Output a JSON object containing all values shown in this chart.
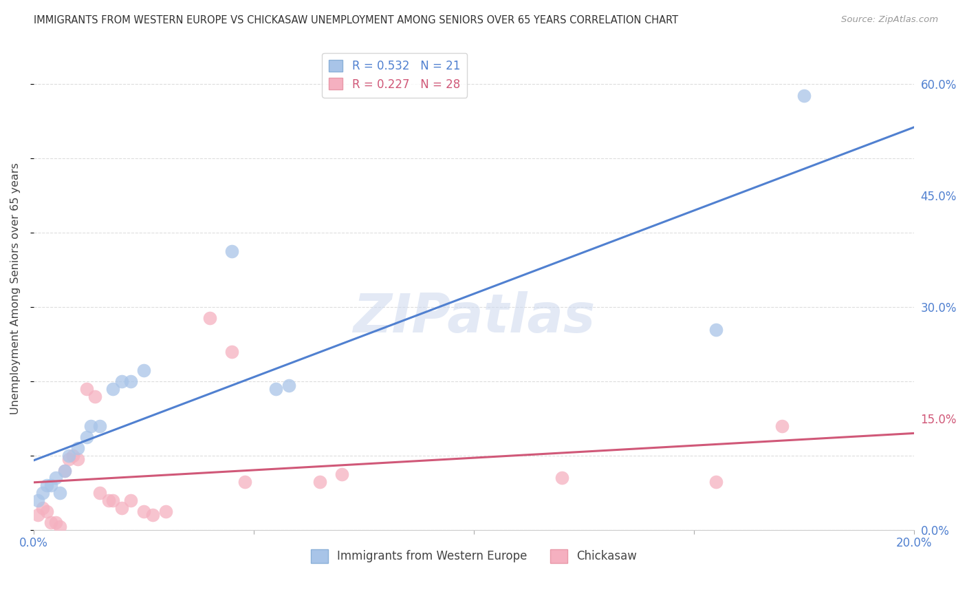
{
  "title": "IMMIGRANTS FROM WESTERN EUROPE VS CHICKASAW UNEMPLOYMENT AMONG SENIORS OVER 65 YEARS CORRELATION CHART",
  "source": "Source: ZipAtlas.com",
  "ylabel": "Unemployment Among Seniors over 65 years",
  "xlim": [
    0.0,
    0.2
  ],
  "ylim": [
    0.0,
    0.65
  ],
  "xticks": [
    0.0,
    0.05,
    0.1,
    0.15,
    0.2
  ],
  "yticks_right": [
    0.0,
    0.15,
    0.3,
    0.45,
    0.6
  ],
  "ytick_labels_right": [
    "0.0%",
    "15.0%",
    "30.0%",
    "45.0%",
    "60.0%"
  ],
  "blue_R": 0.532,
  "blue_N": 21,
  "pink_R": 0.227,
  "pink_N": 28,
  "blue_label": "Immigrants from Western Europe",
  "pink_label": "Chickasaw",
  "background_color": "#ffffff",
  "grid_color": "#dddddd",
  "blue_color": "#a8c4e8",
  "pink_color": "#f5b0c0",
  "blue_line_color": "#5080d0",
  "pink_line_color": "#d05878",
  "title_color": "#333333",
  "watermark": "ZIPatlas",
  "blue_scatter_x": [
    0.001,
    0.002,
    0.003,
    0.004,
    0.005,
    0.006,
    0.007,
    0.008,
    0.01,
    0.012,
    0.013,
    0.015,
    0.018,
    0.02,
    0.022,
    0.025,
    0.045,
    0.055,
    0.058,
    0.155,
    0.175
  ],
  "blue_scatter_y": [
    0.04,
    0.05,
    0.06,
    0.06,
    0.07,
    0.05,
    0.08,
    0.1,
    0.11,
    0.125,
    0.14,
    0.14,
    0.19,
    0.2,
    0.2,
    0.215,
    0.375,
    0.19,
    0.195,
    0.27,
    0.585
  ],
  "pink_scatter_x": [
    0.001,
    0.002,
    0.003,
    0.004,
    0.005,
    0.006,
    0.007,
    0.008,
    0.009,
    0.01,
    0.012,
    0.014,
    0.015,
    0.017,
    0.018,
    0.02,
    0.022,
    0.025,
    0.027,
    0.03,
    0.04,
    0.045,
    0.048,
    0.065,
    0.07,
    0.12,
    0.155,
    0.17
  ],
  "pink_scatter_y": [
    0.02,
    0.03,
    0.025,
    0.01,
    0.01,
    0.005,
    0.08,
    0.095,
    0.1,
    0.095,
    0.19,
    0.18,
    0.05,
    0.04,
    0.04,
    0.03,
    0.04,
    0.025,
    0.02,
    0.025,
    0.285,
    0.24,
    0.065,
    0.065,
    0.075,
    0.07,
    0.065,
    0.14
  ]
}
